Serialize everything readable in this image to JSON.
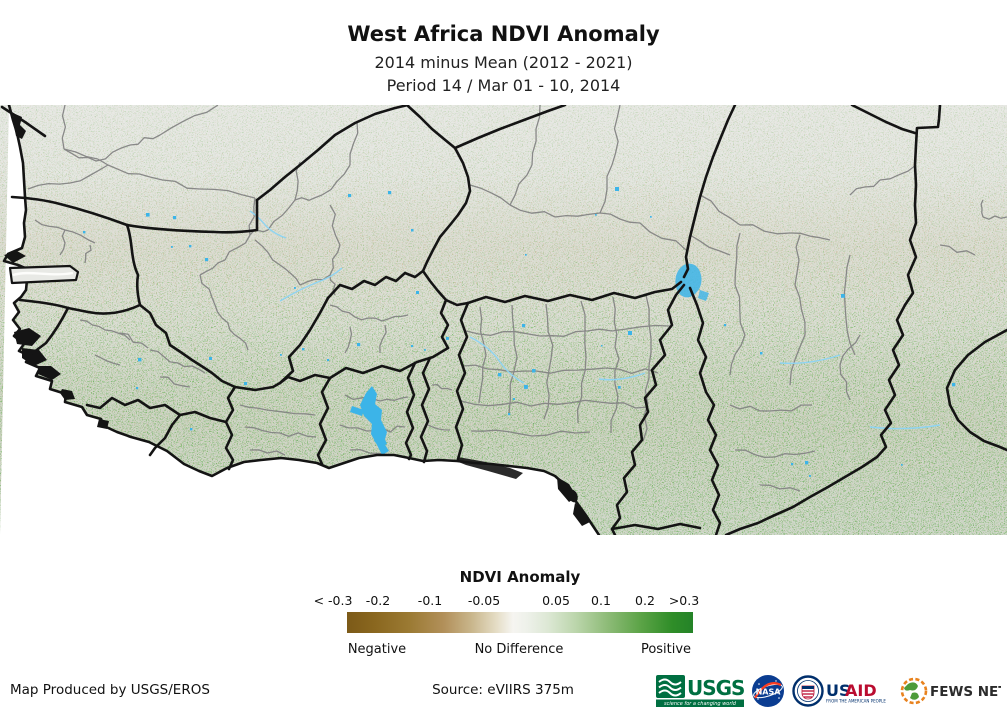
{
  "header": {
    "title": "West Africa NDVI Anomaly",
    "subtitle1": "2014 minus Mean (2012 - 2021)",
    "subtitle2": "Period 14 / Mar 01 - 10, 2014"
  },
  "map": {
    "description": "Satellite-derived NDVI anomaly map of West Africa with national (black) and sub-national (gray) boundaries",
    "colors": {
      "ocean": "#ffffff",
      "land": "#e8e9e5",
      "country_border": "#141414",
      "admin_border": "#848484",
      "water": "#3cb4e8",
      "positive_anomaly": "#2f8d28",
      "negative_anomaly": "#8a6228"
    }
  },
  "legend": {
    "title": "NDVI Anomaly",
    "ticks": [
      "< -0.3",
      "-0.2",
      "-0.1",
      "-0.05",
      "0.05",
      "0.1",
      "0.2",
      ">0.3"
    ],
    "labels": {
      "negative": "Negative",
      "no_difference": "No Difference",
      "positive": "Positive"
    },
    "gradient": [
      "#7c5a18",
      "#9b7a33",
      "#c9b68c",
      "#f6f5f1",
      "#dde8d5",
      "#8fbc79",
      "#2f8d28"
    ]
  },
  "footer": {
    "produced_by": "Map Produced by USGS/EROS",
    "source": "Source: eVIIRS 375m"
  },
  "logos": {
    "usgs": {
      "name": "USGS",
      "tagline": "science for a changing world",
      "color": "#006f41"
    },
    "nasa": {
      "name": "NASA",
      "color": "#0b3d91"
    },
    "usaid": {
      "us": "US",
      "aid": "AID",
      "tagline": "FROM THE AMERICAN PEOPLE",
      "blue": "#002f6c",
      "red": "#ba0c2f"
    },
    "fewsnet": {
      "name": "FEWS NET",
      "orange": "#e8821e",
      "green": "#4d9b3a"
    }
  }
}
